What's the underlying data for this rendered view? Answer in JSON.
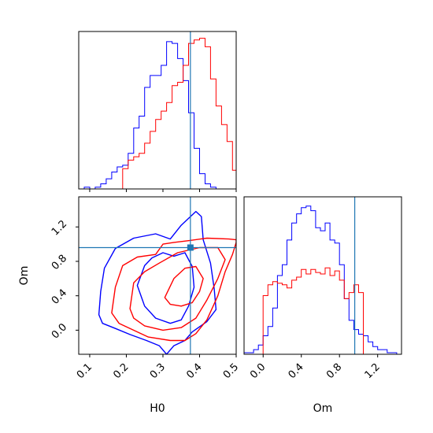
{
  "chart_data": [
    {
      "type": "histogram",
      "panel": "H0 marginal",
      "x_range": [
        0.07,
        0.5
      ],
      "truth": 0.375,
      "series": [
        {
          "color": "#0000ff",
          "bin_edges": [
            0.07,
            0.085,
            0.1,
            0.115,
            0.13,
            0.145,
            0.16,
            0.175,
            0.19,
            0.205,
            0.22,
            0.235,
            0.25,
            0.265,
            0.28,
            0.295,
            0.31,
            0.325,
            0.34,
            0.355,
            0.37,
            0.385,
            0.4,
            0.415,
            0.43,
            0.445
          ],
          "counts": [
            0.0,
            0.01,
            0.0,
            0.01,
            0.03,
            0.06,
            0.1,
            0.13,
            0.14,
            0.21,
            0.36,
            0.43,
            0.6,
            0.67,
            0.67,
            0.73,
            0.87,
            0.86,
            0.77,
            0.64,
            0.45,
            0.24,
            0.09,
            0.03,
            0.01
          ]
        },
        {
          "color": "#ff0000",
          "bin_edges": [
            0.19,
            0.205,
            0.22,
            0.235,
            0.25,
            0.265,
            0.28,
            0.295,
            0.31,
            0.325,
            0.34,
            0.355,
            0.37,
            0.385,
            0.4,
            0.415,
            0.43,
            0.445,
            0.46,
            0.475,
            0.49,
            0.5
          ],
          "counts": [
            0.12,
            0.17,
            0.19,
            0.21,
            0.27,
            0.34,
            0.41,
            0.46,
            0.51,
            0.61,
            0.63,
            0.73,
            0.86,
            0.88,
            0.89,
            0.84,
            0.65,
            0.49,
            0.38,
            0.28,
            0.11
          ]
        }
      ]
    },
    {
      "type": "contour",
      "panel": "H0 vs Om",
      "xlabel": "H0",
      "ylabel": "Om",
      "x_range": [
        0.07,
        0.5
      ],
      "y_range": [
        -0.28,
        1.55
      ],
      "x_ticks": [
        "0.1",
        "0.2",
        "0.3",
        "0.4",
        "0.5"
      ],
      "x_tick_values": [
        0.1,
        0.2,
        0.3,
        0.4,
        0.5
      ],
      "y_ticks": [
        "0.0",
        "0.4",
        "0.8",
        "1.2"
      ],
      "y_tick_values": [
        0.0,
        0.4,
        0.8,
        1.2
      ],
      "truth": {
        "x": 0.375,
        "y": 0.96
      },
      "series": [
        {
          "color": "#0000ff",
          "levels": [
            [
              [
                0.125,
                0.18
              ],
              [
                0.13,
                0.45
              ],
              [
                0.14,
                0.72
              ],
              [
                0.17,
                0.95
              ],
              [
                0.22,
                1.07
              ],
              [
                0.28,
                1.12
              ],
              [
                0.32,
                1.06
              ],
              [
                0.35,
                1.22
              ],
              [
                0.39,
                1.38
              ],
              [
                0.405,
                1.32
              ],
              [
                0.41,
                1.05
              ],
              [
                0.43,
                0.78
              ],
              [
                0.44,
                0.48
              ],
              [
                0.445,
                0.24
              ],
              [
                0.42,
                0.1
              ],
              [
                0.38,
                -0.02
              ],
              [
                0.36,
                -0.12
              ],
              [
                0.33,
                -0.18
              ],
              [
                0.31,
                -0.28
              ],
              [
                0.29,
                -0.18
              ],
              [
                0.255,
                -0.12
              ],
              [
                0.21,
                -0.05
              ],
              [
                0.17,
                0.02
              ],
              [
                0.135,
                0.08
              ]
            ],
            [
              [
                0.23,
                0.52
              ],
              [
                0.25,
                0.75
              ],
              [
                0.27,
                0.84
              ],
              [
                0.3,
                0.9
              ],
              [
                0.33,
                0.86
              ],
              [
                0.36,
                0.9
              ],
              [
                0.38,
                0.74
              ],
              [
                0.385,
                0.5
              ],
              [
                0.37,
                0.28
              ],
              [
                0.35,
                0.12
              ],
              [
                0.32,
                0.08
              ],
              [
                0.28,
                0.14
              ],
              [
                0.25,
                0.28
              ]
            ]
          ]
        },
        {
          "color": "#ff0000",
          "levels": [
            [
              [
                0.16,
                0.2
              ],
              [
                0.17,
                0.5
              ],
              [
                0.19,
                0.75
              ],
              [
                0.23,
                0.85
              ],
              [
                0.28,
                0.88
              ],
              [
                0.3,
                1.0
              ],
              [
                0.33,
                1.02
              ],
              [
                0.37,
                1.04
              ],
              [
                0.42,
                1.07
              ],
              [
                0.48,
                1.06
              ],
              [
                0.5,
                1.05
              ],
              [
                0.5,
                1.02
              ],
              [
                0.49,
                0.88
              ],
              [
                0.47,
                0.68
              ],
              [
                0.45,
                0.4
              ],
              [
                0.42,
                0.12
              ],
              [
                0.39,
                -0.04
              ],
              [
                0.36,
                -0.12
              ],
              [
                0.32,
                -0.12
              ],
              [
                0.26,
                -0.08
              ],
              [
                0.21,
                0.02
              ],
              [
                0.18,
                0.08
              ]
            ],
            [
              [
                0.21,
                0.25
              ],
              [
                0.22,
                0.55
              ],
              [
                0.25,
                0.68
              ],
              [
                0.29,
                0.78
              ],
              [
                0.34,
                0.9
              ],
              [
                0.4,
                0.96
              ],
              [
                0.45,
                0.96
              ],
              [
                0.47,
                0.82
              ],
              [
                0.45,
                0.6
              ],
              [
                0.42,
                0.35
              ],
              [
                0.39,
                0.14
              ],
              [
                0.35,
                0.03
              ],
              [
                0.3,
                0.0
              ],
              [
                0.25,
                0.05
              ],
              [
                0.22,
                0.14
              ]
            ],
            [
              [
                0.305,
                0.38
              ],
              [
                0.33,
                0.6
              ],
              [
                0.36,
                0.72
              ],
              [
                0.39,
                0.74
              ],
              [
                0.41,
                0.6
              ],
              [
                0.4,
                0.45
              ],
              [
                0.38,
                0.32
              ],
              [
                0.35,
                0.28
              ],
              [
                0.32,
                0.3
              ]
            ]
          ]
        }
      ]
    },
    {
      "type": "histogram",
      "panel": "Om marginal",
      "x_range": [
        -0.2,
        1.45
      ],
      "x_ticks": [
        "0.0",
        "0.4",
        "0.8",
        "1.2"
      ],
      "x_tick_values": [
        0.0,
        0.4,
        0.8,
        1.2
      ],
      "xlabel": "Om",
      "truth": 0.96,
      "series": [
        {
          "color": "#0000ff",
          "bin_edges": [
            -0.2,
            -0.1,
            -0.05,
            0.0,
            0.05,
            0.1,
            0.15,
            0.2,
            0.25,
            0.3,
            0.35,
            0.4,
            0.45,
            0.5,
            0.55,
            0.6,
            0.65,
            0.7,
            0.75,
            0.8,
            0.85,
            0.9,
            0.95,
            1.0,
            1.05,
            1.1,
            1.15,
            1.2,
            1.3,
            1.4
          ],
          "counts": [
            0.01,
            0.03,
            0.06,
            0.12,
            0.18,
            0.3,
            0.51,
            0.58,
            0.74,
            0.85,
            0.91,
            0.95,
            0.96,
            0.93,
            0.82,
            0.8,
            0.85,
            0.74,
            0.72,
            0.58,
            0.36,
            0.22,
            0.16,
            0.13,
            0.12,
            0.08,
            0.05,
            0.03,
            0.01
          ]
        },
        {
          "color": "#ff0000",
          "bin_edges": [
            0.0,
            0.05,
            0.1,
            0.15,
            0.2,
            0.25,
            0.3,
            0.35,
            0.4,
            0.45,
            0.5,
            0.55,
            0.6,
            0.65,
            0.7,
            0.75,
            0.8,
            0.85,
            0.9,
            0.95,
            1.0,
            1.05
          ],
          "counts": [
            0.38,
            0.45,
            0.47,
            0.46,
            0.45,
            0.43,
            0.48,
            0.5,
            0.55,
            0.52,
            0.55,
            0.53,
            0.52,
            0.56,
            0.51,
            0.54,
            0.48,
            0.36,
            0.4,
            0.45,
            0.4
          ]
        }
      ]
    }
  ]
}
